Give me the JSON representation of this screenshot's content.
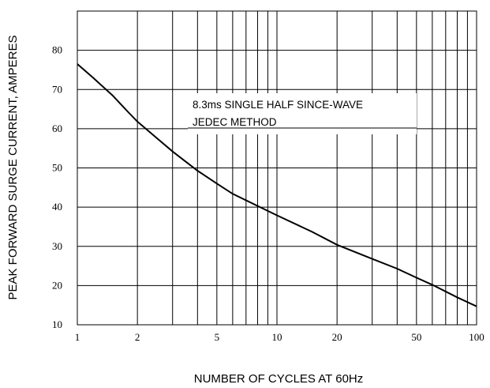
{
  "chart_data": {
    "type": "line",
    "xlabel": "NUMBER OF CYCLES AT 60Hz",
    "ylabel": "PEAK FORWARD SURGE CURRENT, AMPERES",
    "x_scale": "log",
    "xlim": [
      1,
      100
    ],
    "ylim": [
      10,
      90
    ],
    "x_ticks": [
      "1",
      "2",
      "5",
      "10",
      "20",
      "50",
      "100"
    ],
    "y_ticks": [
      "10",
      "20",
      "30",
      "40",
      "50",
      "60",
      "70",
      "80"
    ],
    "grid": true,
    "annotations": [
      "8.3ms SINGLE HALF SINCE-WAVE",
      "JEDEC METHOD"
    ],
    "series": [
      {
        "x": [
          1,
          1.2,
          1.5,
          1.8,
          2,
          2.5,
          3,
          4,
          5,
          6,
          8,
          10,
          15,
          20,
          30,
          40,
          50,
          60,
          80,
          100
        ],
        "y": [
          76.5,
          73,
          68.5,
          64.2,
          61.8,
          57.6,
          54.2,
          49.3,
          46,
          43.4,
          40.3,
          37.9,
          33.7,
          30.4,
          26.8,
          24.3,
          22,
          20.2,
          17,
          14.7
        ]
      }
    ]
  }
}
